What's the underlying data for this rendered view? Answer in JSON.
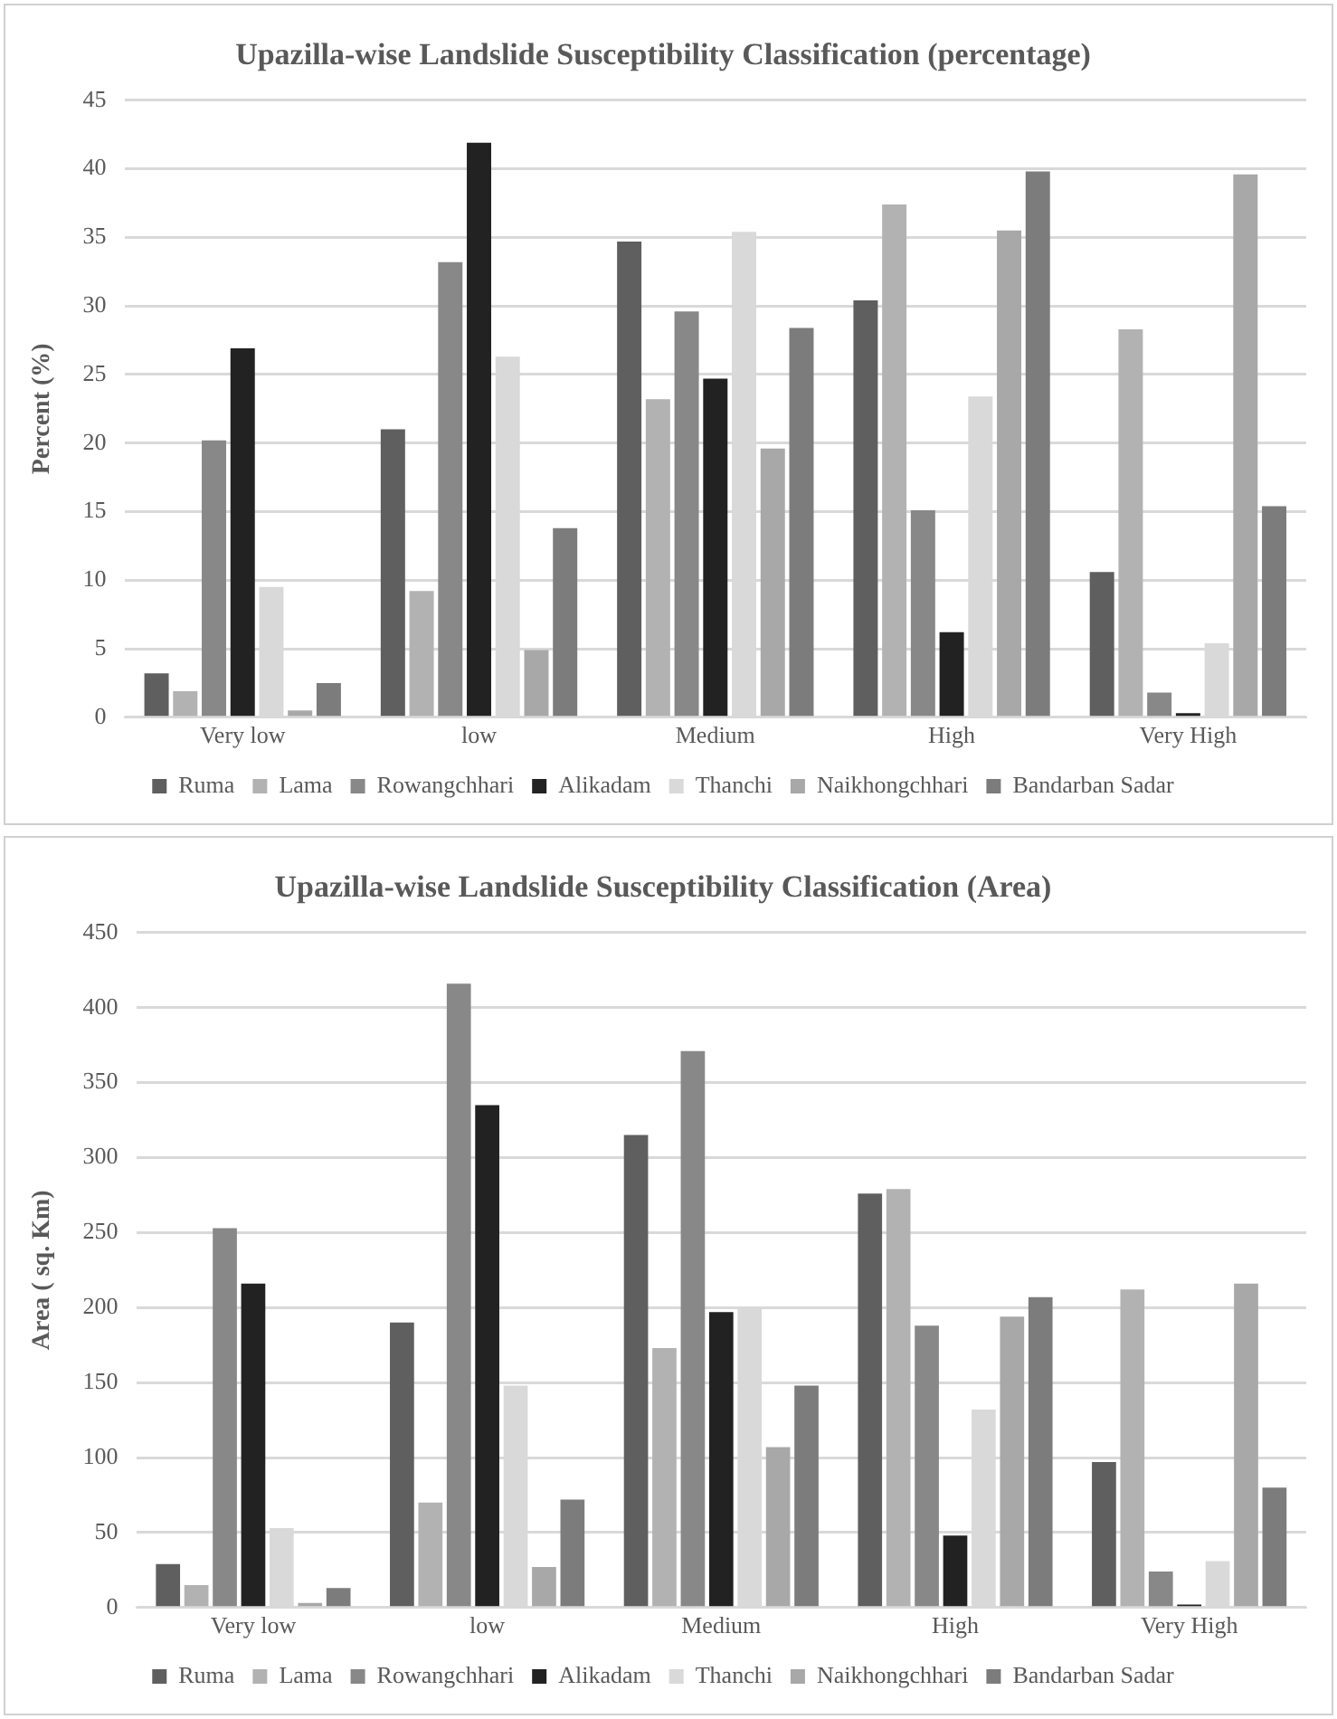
{
  "chart_data": [
    {
      "type": "bar",
      "title": "Upazilla-wise Landslide Susceptibility Classification (percentage)",
      "ylabel": "Percent (%)",
      "categories": [
        "Very low",
        "low",
        "Medium",
        "High",
        "Very High"
      ],
      "ylim": [
        0,
        45
      ],
      "yticks": [
        0,
        5,
        10,
        15,
        20,
        25,
        30,
        35,
        40,
        45
      ],
      "grid": "y",
      "legend": "bottom",
      "series": [
        {
          "name": "Ruma",
          "color": "#5f5f5f",
          "values": [
            3.2,
            21,
            34.7,
            30.4,
            10.6
          ]
        },
        {
          "name": "Lama",
          "color": "#b2b2b2",
          "values": [
            1.9,
            9.2,
            23.2,
            37.4,
            28.3
          ]
        },
        {
          "name": "Rowangchhari",
          "color": "#888888",
          "values": [
            20.2,
            33.2,
            29.6,
            15.1,
            1.8
          ]
        },
        {
          "name": "Alikadam",
          "color": "#222222",
          "values": [
            26.9,
            41.9,
            24.7,
            6.2,
            0.3
          ]
        },
        {
          "name": "Thanchi",
          "color": "#d9d9d9",
          "values": [
            9.5,
            26.3,
            35.4,
            23.4,
            5.4
          ]
        },
        {
          "name": "Naikhongchhari",
          "color": "#a8a8a8",
          "values": [
            0.5,
            4.9,
            19.6,
            35.5,
            39.6
          ]
        },
        {
          "name": "Bandarban Sadar",
          "color": "#7c7c7c",
          "values": [
            2.5,
            13.8,
            28.4,
            39.8,
            15.4
          ]
        }
      ]
    },
    {
      "type": "bar",
      "title": "Upazilla-wise Landslide Susceptibility Classification (Area)",
      "ylabel": "Area ( sq. Km)",
      "categories": [
        "Very low",
        "low",
        "Medium",
        "High",
        "Very High"
      ],
      "ylim": [
        0,
        450
      ],
      "yticks": [
        0,
        50,
        100,
        150,
        200,
        250,
        300,
        350,
        400,
        450
      ],
      "grid": "y",
      "legend": "bottom",
      "series": [
        {
          "name": "Ruma",
          "color": "#5f5f5f",
          "values": [
            29,
            190,
            315,
            276,
            97
          ]
        },
        {
          "name": "Lama",
          "color": "#b2b2b2",
          "values": [
            15,
            70,
            173,
            279,
            212
          ]
        },
        {
          "name": "Rowangchhari",
          "color": "#888888",
          "values": [
            253,
            416,
            371,
            188,
            24
          ]
        },
        {
          "name": "Alikadam",
          "color": "#222222",
          "values": [
            216,
            335,
            197,
            48,
            2
          ]
        },
        {
          "name": "Thanchi",
          "color": "#d9d9d9",
          "values": [
            53,
            148,
            199,
            132,
            31
          ]
        },
        {
          "name": "Naikhongchhari",
          "color": "#a8a8a8",
          "values": [
            3,
            27,
            107,
            194,
            216
          ]
        },
        {
          "name": "Bandarban Sadar",
          "color": "#7c7c7c",
          "values": [
            13,
            72,
            148,
            207,
            80
          ]
        }
      ]
    }
  ]
}
